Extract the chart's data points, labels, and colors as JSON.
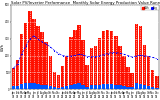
{
  "title": "Solar PV/Inverter Performance  Monthly Solar Energy Production Value Running Average",
  "title_fontsize": 2.8,
  "bar_color": "#ff1100",
  "avg_color": "#0000ff",
  "small_bar_color": "#0055ff",
  "background_color": "#ffffff",
  "grid_color": "#aaaaaa",
  "ylabel": "kWh",
  "ylabel_fontsize": 2.5,
  "categories": [
    "Jan\n07",
    "Feb\n07",
    "Mar\n07",
    "Apr\n07",
    "May\n07",
    "Jun\n07",
    "Jul\n07",
    "Aug\n07",
    "Sep\n07",
    "Oct\n07",
    "Nov\n07",
    "Dec\n07",
    "Jan\n08",
    "Feb\n08",
    "Mar\n08",
    "Apr\n08",
    "May\n08",
    "Jun\n08",
    "Jul\n08",
    "Aug\n08",
    "Sep\n08",
    "Oct\n08",
    "Nov\n08",
    "Dec\n08",
    "Jan\n09",
    "Feb\n09",
    "Mar\n09",
    "Apr\n09",
    "May\n09",
    "Jun\n09",
    "Jul\n09",
    "Aug\n09",
    "Sep\n09",
    "Oct\n09",
    "Nov\n09",
    "Dec\n09"
  ],
  "values": [
    125,
    175,
    330,
    390,
    465,
    415,
    375,
    340,
    280,
    195,
    100,
    85,
    140,
    200,
    310,
    350,
    380,
    295,
    145,
    245,
    255,
    305,
    345,
    350,
    345,
    315,
    255,
    195,
    130,
    95,
    385,
    375,
    265,
    195,
    115,
    80
  ],
  "small_values": [
    18,
    22,
    30,
    35,
    40,
    38,
    32,
    28,
    25,
    18,
    12,
    10,
    15,
    22,
    28,
    32,
    35,
    28,
    16,
    25,
    24,
    28,
    32,
    32,
    32,
    28,
    24,
    18,
    14,
    12,
    35,
    32,
    24,
    18,
    14,
    10
  ],
  "running_avg": [
    125,
    150,
    210,
    255,
    297,
    317,
    296,
    282,
    268,
    252,
    230,
    212,
    200,
    196,
    197,
    201,
    207,
    205,
    194,
    193,
    194,
    198,
    205,
    212,
    218,
    218,
    214,
    208,
    200,
    191,
    198,
    202,
    199,
    195,
    189,
    182
  ],
  "ylim": [
    0,
    500
  ],
  "yticks": [
    0,
    100,
    200,
    300,
    400,
    500
  ],
  "ytick_labels": [
    "0",
    "100",
    "200",
    "300",
    "400",
    "500"
  ],
  "legend_entries": [
    "kWh",
    "Avg"
  ],
  "legend_colors": [
    "#ff1100",
    "#0000ff"
  ]
}
